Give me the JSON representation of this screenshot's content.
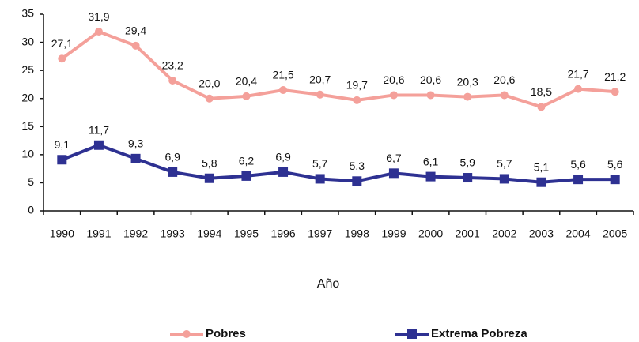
{
  "chart_data": {
    "type": "line",
    "xlabel": "Año",
    "categories": [
      "1990",
      "1991",
      "1992",
      "1993",
      "1994",
      "1995",
      "1996",
      "1997",
      "1998",
      "1999",
      "2000",
      "2001",
      "2002",
      "2003",
      "2004",
      "2005"
    ],
    "series": [
      {
        "name": "Pobres",
        "color": "#f4a09a",
        "marker": "circle",
        "values": [
          27.1,
          31.9,
          29.4,
          23.2,
          20.0,
          20.4,
          21.5,
          20.7,
          19.7,
          20.6,
          20.6,
          20.3,
          20.6,
          18.5,
          21.7,
          21.2
        ],
        "value_labels": [
          "27,1",
          "31,9",
          "29,4",
          "23,2",
          "20,0",
          "20,4",
          "21,5",
          "20,7",
          "19,7",
          "20,6",
          "20,6",
          "20,3",
          "20,6",
          "18,5",
          "21,7",
          "21,2"
        ]
      },
      {
        "name": "Extrema Pobreza",
        "color": "#2e3192",
        "marker": "square",
        "values": [
          9.1,
          11.7,
          9.3,
          6.9,
          5.8,
          6.2,
          6.9,
          5.7,
          5.3,
          6.7,
          6.1,
          5.9,
          5.7,
          5.1,
          5.6,
          5.6
        ],
        "value_labels": [
          "9,1",
          "11,7",
          "9,3",
          "6,9",
          "5,8",
          "6,2",
          "6,9",
          "5,7",
          "5,3",
          "6,7",
          "6,1",
          "5,9",
          "5,7",
          "5,1",
          "5,6",
          "5,6"
        ]
      }
    ],
    "ylim": [
      0,
      35
    ],
    "yticks": [
      0,
      5,
      10,
      15,
      20,
      25,
      30,
      35
    ],
    "grid": false,
    "legend": "bottom"
  }
}
